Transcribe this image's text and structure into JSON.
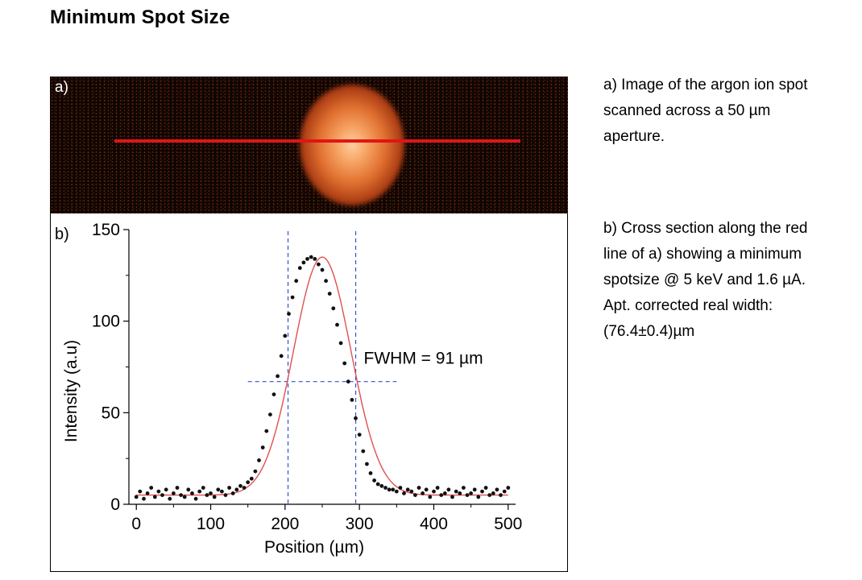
{
  "page": {
    "title": "Minimum Spot Size"
  },
  "panel_a": {
    "label": "a)"
  },
  "panel_b": {
    "label": "b)",
    "annotation": "FWHM = 91 µm"
  },
  "captions": {
    "a": [
      "a) Image of the argon ion spot",
      "scanned across a 50 µm",
      "aperture."
    ],
    "b": [
      "b) Cross section along the red",
      "line of a) showing a minimum",
      "spotsize @ 5 keV and 1.6 µA.",
      "Apt. corrected real width:",
      "(76.4±0.4)µm"
    ]
  },
  "colors": {
    "red_line": "#e01515",
    "fit_line": "#e05050",
    "points": "#111111",
    "guides": "#3050d0"
  },
  "chart_data": {
    "type": "scatter",
    "xlabel": "Position (µm)",
    "ylabel": "Intensity (a.u)",
    "xlim": [
      -10,
      510
    ],
    "ylim": [
      0,
      150
    ],
    "xticks": [
      0,
      100,
      200,
      300,
      400,
      500
    ],
    "yticks": [
      0,
      50,
      100,
      150
    ],
    "gaussian_fit": {
      "center": 250,
      "fwhm": 91,
      "amplitude": 130,
      "baseline": 5
    },
    "fwhm_markers": {
      "x_left": 204,
      "x_right": 295,
      "y_half": 67,
      "x_line_from": 150,
      "x_line_to": 350
    },
    "series": [
      {
        "x": [
          0,
          5,
          10,
          15,
          20,
          25,
          30,
          35,
          40,
          45,
          50,
          55,
          60,
          65,
          70,
          75,
          80,
          85,
          90,
          95,
          100,
          105,
          110,
          115,
          120,
          125,
          130,
          135,
          140,
          145,
          150,
          155,
          160,
          165,
          170,
          175,
          180,
          185,
          190,
          195,
          200,
          205,
          210,
          215,
          220,
          225,
          230,
          235,
          240,
          245,
          250,
          255,
          260,
          265,
          270,
          275,
          280,
          285,
          290,
          295,
          300,
          305,
          310,
          315,
          320,
          325,
          330,
          335,
          340,
          345,
          350,
          355,
          360,
          365,
          370,
          375,
          380,
          385,
          390,
          395,
          400,
          405,
          410,
          415,
          420,
          425,
          430,
          435,
          440,
          445,
          450,
          455,
          460,
          465,
          470,
          475,
          480,
          485,
          490,
          495,
          500
        ],
        "y": [
          4,
          7,
          3,
          6,
          9,
          4,
          7,
          5,
          8,
          3,
          6,
          9,
          5,
          4,
          8,
          6,
          3,
          7,
          9,
          5,
          6,
          4,
          8,
          7,
          5,
          9,
          6,
          8,
          10,
          9,
          12,
          14,
          18,
          24,
          31,
          40,
          49,
          60,
          70,
          81,
          92,
          104,
          113,
          122,
          129,
          132,
          134,
          135,
          134,
          131,
          128,
          122,
          115,
          107,
          98,
          88,
          77,
          67,
          57,
          47,
          38,
          29,
          22,
          17,
          13,
          11,
          10,
          9,
          8,
          8,
          7,
          9,
          6,
          8,
          7,
          5,
          9,
          6,
          8,
          4,
          7,
          9,
          5,
          6,
          8,
          4,
          7,
          6,
          9,
          5,
          6,
          8,
          4,
          7,
          9,
          5,
          6,
          8,
          5,
          7,
          9
        ]
      }
    ]
  }
}
